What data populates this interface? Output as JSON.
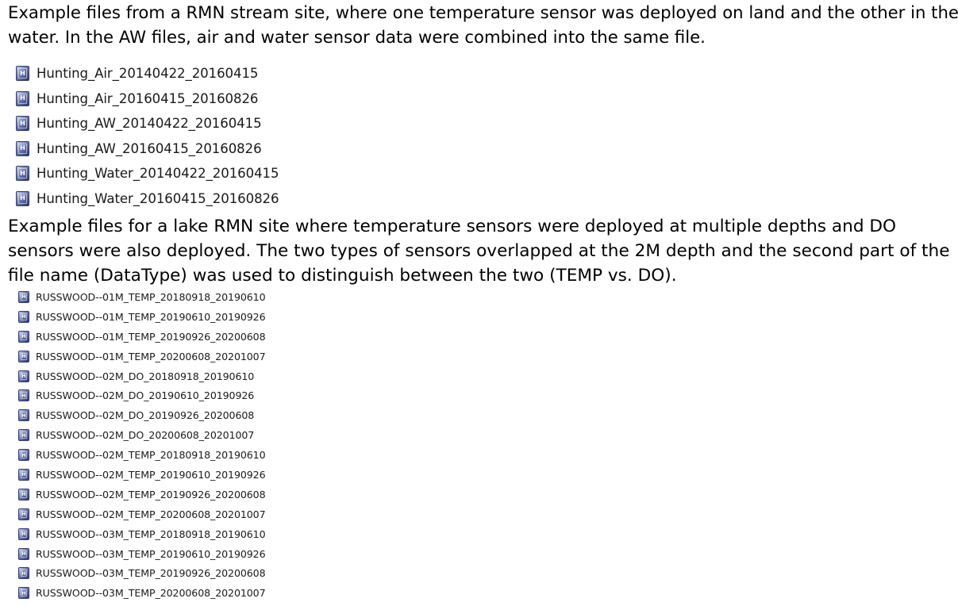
{
  "paragraphs": {
    "stream": [
      "Example files from a RMN stream site, where one temperature sensor was deployed on land and the other in the",
      "water. In the AW files, air and water sensor data were combined into the same file."
    ],
    "lake": [
      "Example files for a lake RMN site where temperature sensors were deployed at multiple depths and DO",
      "sensors were also deployed. The two types of sensors overlapped at the 2M depth and the second part of the",
      "file name (DataType) was used to distinguish between the two (TEMP vs. DO)."
    ]
  },
  "file_icon": {
    "name": "hobo-data-file-icon",
    "glyph": "H"
  },
  "stream_files": [
    "Hunting_Air_20140422_20160415",
    "Hunting_Air_20160415_20160826",
    "Hunting_AW_20140422_20160415",
    "Hunting_AW_20160415_20160826",
    "Hunting_Water_20140422_20160415",
    "Hunting_Water_20160415_20160826"
  ],
  "lake_files": [
    "RUSSWOOD--01M_TEMP_20180918_20190610",
    "RUSSWOOD--01M_TEMP_20190610_20190926",
    "RUSSWOOD--01M_TEMP_20190926_20200608",
    "RUSSWOOD--01M_TEMP_20200608_20201007",
    "RUSSWOOD--02M_DO_20180918_20190610",
    "RUSSWOOD--02M_DO_20190610_20190926",
    "RUSSWOOD--02M_DO_20190926_20200608",
    "RUSSWOOD--02M_DO_20200608_20201007",
    "RUSSWOOD--02M_TEMP_20180918_20190610",
    "RUSSWOOD--02M_TEMP_20190610_20190926",
    "RUSSWOOD--02M_TEMP_20190926_20200608",
    "RUSSWOOD--02M_TEMP_20200608_20201007",
    "RUSSWOOD--03M_TEMP_20180918_20190610",
    "RUSSWOOD--03M_TEMP_20190610_20190926",
    "RUSSWOOD--03M_TEMP_20190926_20200608",
    "RUSSWOOD--03M_TEMP_20200608_20201007"
  ]
}
